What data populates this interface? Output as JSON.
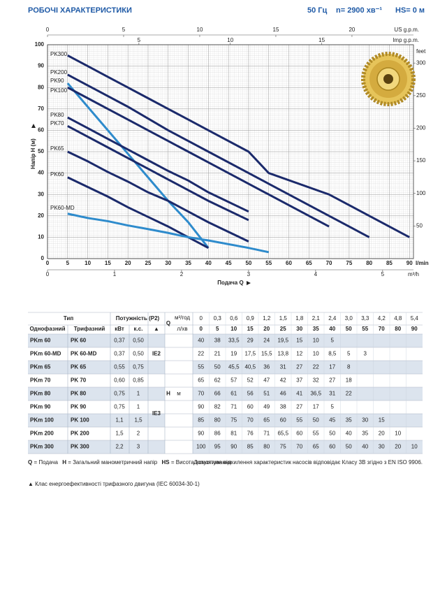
{
  "header": {
    "title": "РОБОЧІ ХАРАКТЕРИСТИКИ",
    "frequency": "50 Гц",
    "speed": "n= 2900 хв⁻¹",
    "suction": "HS= 0 м"
  },
  "chart_data": {
    "type": "line",
    "y_label": "Напір H (м)",
    "x_label": "Подача Q",
    "x_unit": "l/min",
    "x": [
      5,
      10,
      15,
      20,
      25,
      30,
      35,
      40,
      50,
      55,
      70,
      80,
      90
    ],
    "xlim": [
      0,
      91
    ],
    "xticks": [
      0,
      5,
      10,
      15,
      20,
      25,
      30,
      35,
      40,
      45,
      50,
      55,
      60,
      65,
      70,
      75,
      80,
      85,
      90
    ],
    "ylim": [
      0,
      100
    ],
    "yticks": [
      0,
      10,
      20,
      30,
      40,
      50,
      60,
      70,
      80,
      90,
      100
    ],
    "grid": true,
    "secondary_axes": {
      "us_gpm": {
        "label": "US g.p.m.",
        "lim": [
          0,
          24.04
        ],
        "ticks": [
          0,
          5,
          10,
          15,
          20
        ]
      },
      "imp_gpm": {
        "label": "Imp g.p.m.",
        "lim": [
          0,
          20.02
        ],
        "ticks": [
          5,
          10,
          15
        ]
      },
      "m3h": {
        "label": "m³/h",
        "lim": [
          0,
          5.46
        ],
        "ticks": [
          0,
          1,
          2,
          3,
          4,
          5
        ]
      },
      "feet": {
        "label": "feet",
        "lim": [
          0,
          328.08
        ],
        "ticks": [
          50,
          100,
          150,
          200,
          250,
          300
        ]
      }
    },
    "series": [
      {
        "name": "PK300",
        "color": "#1b2a6b",
        "values": [
          95,
          90,
          85,
          80,
          75,
          70,
          65,
          60,
          50,
          40,
          30,
          20,
          10
        ]
      },
      {
        "name": "PK200",
        "color": "#1b2a6b",
        "values": [
          86,
          81,
          76,
          71,
          65.5,
          60,
          55,
          50,
          40,
          35,
          20,
          10,
          null
        ]
      },
      {
        "name": "PK90",
        "color": "#2e8bcc",
        "values": [
          82,
          71,
          60,
          49,
          38,
          27,
          17,
          5,
          null,
          null,
          null,
          null,
          null
        ]
      },
      {
        "name": "PK100",
        "color": "#1b2a6b",
        "values": [
          80,
          75,
          70,
          65,
          60,
          55,
          50,
          45,
          35,
          30,
          15,
          null,
          null
        ]
      },
      {
        "name": "PK80",
        "color": "#1b2a6b",
        "values": [
          66,
          61,
          56,
          51,
          46,
          41,
          36.5,
          31,
          22,
          null,
          null,
          null,
          null
        ]
      },
      {
        "name": "PK70",
        "color": "#1b2a6b",
        "values": [
          62,
          57,
          52,
          47,
          42,
          37,
          32,
          27,
          18,
          null,
          null,
          null,
          null
        ]
      },
      {
        "name": "PK65",
        "color": "#1b2a6b",
        "values": [
          50,
          45.5,
          40.5,
          36,
          31,
          27,
          22,
          17,
          8,
          null,
          null,
          null,
          null
        ]
      },
      {
        "name": "PK60",
        "color": "#1b2a6b",
        "values": [
          38,
          33.5,
          29,
          24,
          19.5,
          15,
          10,
          5,
          null,
          null,
          null,
          null,
          null
        ]
      },
      {
        "name": "PK60-MD",
        "color": "#2e8bcc",
        "values": [
          21,
          19,
          17.5,
          15.5,
          13.8,
          12,
          10,
          8.5,
          5,
          3,
          null,
          null,
          null
        ]
      }
    ]
  },
  "table": {
    "headers": {
      "type": "Тип",
      "power": "Потужність (P2)",
      "single": "Однофазний",
      "three": "Трифазний",
      "kw": "кВт",
      "hp": "к.с.",
      "ie": "▲",
      "q": "Q",
      "q_m3h_unit": "м³/год",
      "q_lmin_unit": "л/хв",
      "h": "H",
      "h_unit": "м"
    },
    "q_m3h": [
      "0",
      "0,3",
      "0,6",
      "0,9",
      "1,2",
      "1,5",
      "1,8",
      "2,1",
      "2,4",
      "3,0",
      "3,3",
      "4,2",
      "4,8",
      "5,4"
    ],
    "q_lmin": [
      0,
      5,
      10,
      15,
      20,
      25,
      30,
      35,
      40,
      50,
      55,
      70,
      80,
      90
    ],
    "ie": [
      "IE2",
      "IE3"
    ],
    "rows": [
      {
        "single": "PKm 60",
        "three": "PK 60",
        "kw": "0,37",
        "hp": "0,50",
        "h": [
          40,
          38,
          "33,5",
          29,
          24,
          "19,5",
          15,
          10,
          5
        ]
      },
      {
        "single": "PKm 60-MD",
        "three": "PK 60-MD",
        "kw": "0,37",
        "hp": "0,50",
        "h": [
          22,
          21,
          19,
          "17,5",
          "15,5",
          "13,8",
          12,
          10,
          "8,5",
          5,
          3
        ]
      },
      {
        "single": "PKm 65",
        "three": "PK 65",
        "kw": "0,55",
        "hp": "0,75",
        "h": [
          55,
          50,
          "45,5",
          "40,5",
          36,
          31,
          27,
          22,
          17,
          8
        ]
      },
      {
        "single": "PKm 70",
        "three": "PK 70",
        "kw": "0,60",
        "hp": "0,85",
        "h": [
          65,
          62,
          57,
          52,
          47,
          42,
          37,
          32,
          27,
          18
        ]
      },
      {
        "single": "PKm 80",
        "three": "PK 80",
        "kw": "0,75",
        "hp": 1,
        "h": [
          70,
          66,
          61,
          56,
          51,
          46,
          41,
          "36,5",
          31,
          22
        ]
      },
      {
        "single": "PKm 90",
        "three": "PK 90",
        "kw": "0,75",
        "hp": 1,
        "h": [
          90,
          82,
          71,
          60,
          49,
          38,
          27,
          17,
          5
        ]
      },
      {
        "single": "PKm 100",
        "three": "PK 100",
        "kw": "1,1",
        "hp": "1,5",
        "h": [
          85,
          80,
          75,
          70,
          65,
          60,
          55,
          50,
          45,
          35,
          30,
          15
        ]
      },
      {
        "single": "PKm 200",
        "three": "PK 200",
        "kw": "1,5",
        "hp": 2,
        "h": [
          90,
          86,
          81,
          76,
          71,
          "65,5",
          60,
          55,
          50,
          40,
          35,
          20,
          10
        ]
      },
      {
        "single": "PKm 300",
        "three": "PK 300",
        "kw": "2,2",
        "hp": 3,
        "h": [
          100,
          95,
          90,
          85,
          80,
          75,
          70,
          65,
          60,
          50,
          40,
          30,
          20,
          10
        ]
      }
    ]
  },
  "notes": {
    "abbreviations": [
      {
        "key": "Q",
        "text": "= Подача"
      },
      {
        "key": "H",
        "text": "= Загальний манометричний напір"
      },
      {
        "key": "HS",
        "text": "= Висота всмоктування"
      }
    ],
    "tolerance": "Допустиме відхилення характеристик насосів відповідає Класу 3В згідно з EN ISO 9906.",
    "ie_note": "▲  Клас енергоефективності трифазного двигуна (IEC 60034-30-1)"
  }
}
